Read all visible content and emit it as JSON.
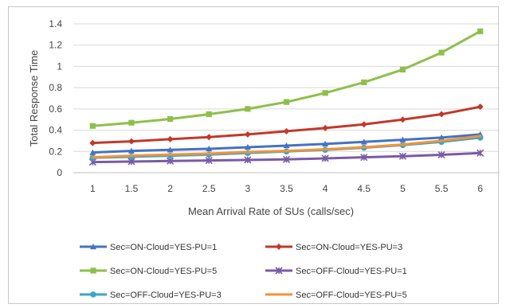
{
  "chart_data": {
    "type": "line",
    "title": "",
    "xlabel": "Mean Arrival Rate of SUs (calls/sec)",
    "ylabel": "Total Response Time",
    "x": [
      1,
      1.5,
      2,
      2.5,
      3,
      3.5,
      4,
      4.5,
      5,
      5.5,
      6
    ],
    "x_tick_labels": [
      "1",
      "1.5",
      "2",
      "2.5",
      "3",
      "3.5",
      "4",
      "4.5",
      "5",
      "5.5",
      "6"
    ],
    "ylim": [
      0,
      1.4
    ],
    "y_ticks": [
      0,
      0.2,
      0.4,
      0.6,
      0.8,
      1,
      1.2,
      1.4
    ],
    "y_tick_labels": [
      "0",
      "0.2",
      "0.4",
      "0.6",
      "0.8",
      "1",
      "1.2",
      "1.4"
    ],
    "grid": "horizontal",
    "legend_position": "bottom",
    "series": [
      {
        "name": "Sec=ON-Cloud=YES-PU=1",
        "color": "#4472c4",
        "marker": "triangle",
        "values": [
          0.19,
          0.205,
          0.215,
          0.225,
          0.24,
          0.255,
          0.27,
          0.29,
          0.31,
          0.33,
          0.36
        ]
      },
      {
        "name": "Sec=ON-Cloud=YES-PU=3",
        "color": "#c0392b",
        "marker": "diamond",
        "values": [
          0.28,
          0.295,
          0.315,
          0.335,
          0.36,
          0.39,
          0.42,
          0.455,
          0.5,
          0.55,
          0.62
        ]
      },
      {
        "name": "Sec=ON-Cloud=YES-PU=5",
        "color": "#8fbf4a",
        "marker": "square",
        "values": [
          0.44,
          0.47,
          0.505,
          0.55,
          0.6,
          0.665,
          0.75,
          0.85,
          0.97,
          1.13,
          1.33
        ]
      },
      {
        "name": "Sec=OFF-Cloud=YES-PU=1",
        "color": "#7b5aa6",
        "marker": "star",
        "values": [
          0.1,
          0.105,
          0.11,
          0.115,
          0.12,
          0.125,
          0.135,
          0.145,
          0.155,
          0.168,
          0.185
        ]
      },
      {
        "name": "Sec=OFF-Cloud=YES-PU=3",
        "color": "#3aa6c6",
        "marker": "circle",
        "values": [
          0.14,
          0.15,
          0.16,
          0.17,
          0.185,
          0.2,
          0.215,
          0.235,
          0.26,
          0.29,
          0.33
        ]
      },
      {
        "name": "Sec=OFF-Cloud=YES-PU=5",
        "color": "#f39237",
        "marker": "none",
        "values": [
          0.145,
          0.16,
          0.17,
          0.18,
          0.195,
          0.205,
          0.22,
          0.24,
          0.265,
          0.3,
          0.345
        ]
      }
    ]
  }
}
